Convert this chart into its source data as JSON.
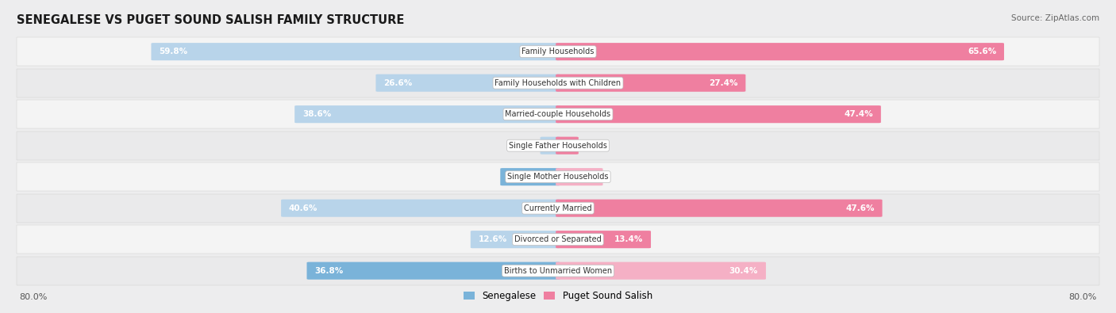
{
  "title": "SENEGALESE VS PUGET SOUND SALISH FAMILY STRUCTURE",
  "source": "Source: ZipAtlas.com",
  "categories": [
    "Family Households",
    "Family Households with Children",
    "Married-couple Households",
    "Single Father Households",
    "Single Mother Households",
    "Currently Married",
    "Divorced or Separated",
    "Births to Unmarried Women"
  ],
  "senegalese": [
    59.8,
    26.6,
    38.6,
    2.3,
    8.2,
    40.6,
    12.6,
    36.8
  ],
  "puget_sound": [
    65.6,
    27.4,
    47.4,
    2.7,
    6.3,
    47.6,
    13.4,
    30.4
  ],
  "max_val": 80.0,
  "color_senegalese": "#7ab3d9",
  "color_puget": "#ef7fa0",
  "color_senegalese_light": "#b8d4ea",
  "color_puget_light": "#f5b0c5",
  "bg_color": "#ededee",
  "row_bg_odd": "#f5f5f5",
  "row_bg_even": "#e8e8e9",
  "label_box_color": "#ffffff",
  "axis_label_left": "80.0%",
  "axis_label_right": "80.0%"
}
